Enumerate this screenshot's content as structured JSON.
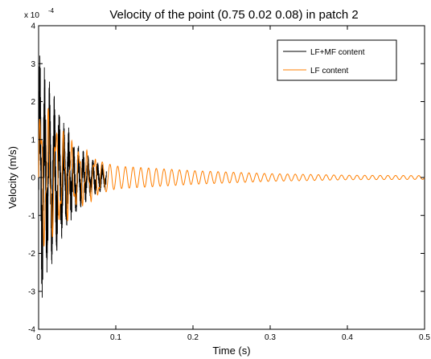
{
  "chart_data": {
    "type": "line",
    "title": "Velocity of the point (0.75 0.02 0.08) in patch 2",
    "xlabel": "Time (s)",
    "ylabel": "Velocity (m/s)",
    "y_scale_label": "x 10",
    "y_scale_exponent": "-4",
    "xlim": [
      0,
      0.5
    ],
    "ylim": [
      -4,
      4
    ],
    "y_unit_multiplier": 0.0001,
    "x_ticks": [
      "0",
      "0.1",
      "0.2",
      "0.3",
      "0.4",
      "0.5"
    ],
    "y_ticks": [
      "-4",
      "-3",
      "-2",
      "-1",
      "0",
      "1",
      "2",
      "3",
      "4"
    ],
    "grid": false,
    "legend_position": "top-right",
    "series": [
      {
        "name": "LF+MF content",
        "color": "#000000",
        "x_range": [
          0,
          0.088
        ],
        "envelope_points": [
          [
            0,
            3.6
          ],
          [
            0.01,
            2.8
          ],
          [
            0.02,
            2.2
          ],
          [
            0.03,
            1.7
          ],
          [
            0.05,
            0.9
          ],
          [
            0.07,
            0.5
          ],
          [
            0.088,
            0.3
          ]
        ]
      },
      {
        "name": "LF content",
        "color": "#ff7f00",
        "x_range": [
          0,
          0.5
        ],
        "envelope_points": [
          [
            0,
            1.5
          ],
          [
            0.01,
            1.4
          ],
          [
            0.02,
            1.2
          ],
          [
            0.04,
            0.8
          ],
          [
            0.06,
            0.55
          ],
          [
            0.1,
            0.3
          ],
          [
            0.2,
            0.18
          ],
          [
            0.3,
            0.1
          ],
          [
            0.4,
            0.06
          ],
          [
            0.5,
            0.05
          ]
        ]
      }
    ]
  }
}
